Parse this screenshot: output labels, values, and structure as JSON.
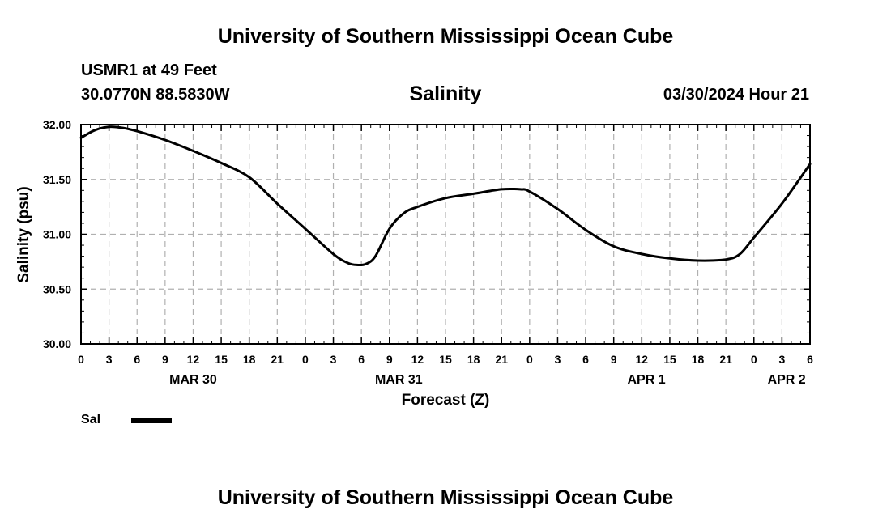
{
  "page": {
    "title_top": "University of Southern Mississippi Ocean Cube",
    "title_bottom": "University of Southern Mississippi Ocean Cube",
    "station": "USMR1 at 49 Feet",
    "coords": "30.0770N  88.5830W",
    "chart_title": "Salinity",
    "timestamp": "03/30/2024 Hour 21"
  },
  "legend": {
    "label": "Sal"
  },
  "colors": {
    "line": "#000000",
    "grid": "#b0b0b0",
    "background": "#ffffff"
  },
  "chart_data": {
    "type": "line",
    "title": "Salinity",
    "xlabel": "Forecast (Z)",
    "ylabel": "Salinity (psu)",
    "x_unit": "forecast hours",
    "xlim": [
      0,
      78
    ],
    "ylim": [
      30.0,
      32.0
    ],
    "yticks": [
      30.0,
      30.5,
      31.0,
      31.5,
      32.0
    ],
    "ytick_labels": [
      "30.00",
      "30.50",
      "31.00",
      "31.50",
      "32.00"
    ],
    "xtick_values": [
      0,
      3,
      6,
      9,
      12,
      15,
      18,
      21,
      24,
      27,
      30,
      33,
      36,
      39,
      42,
      45,
      48,
      51,
      54,
      57,
      60,
      63,
      66,
      69,
      72,
      75,
      78
    ],
    "xtick_labels": [
      "0",
      "3",
      "6",
      "9",
      "12",
      "15",
      "18",
      "21",
      "0",
      "3",
      "6",
      "9",
      "12",
      "15",
      "18",
      "21",
      "0",
      "3",
      "6",
      "9",
      "12",
      "15",
      "18",
      "21",
      "0",
      "3",
      "6"
    ],
    "day_labels": [
      {
        "label": "MAR 30",
        "x": 12
      },
      {
        "label": "MAR 31",
        "x": 34
      },
      {
        "label": "APR 1",
        "x": 60.5
      },
      {
        "label": "APR 2",
        "x": 75.5
      }
    ],
    "grid": true,
    "legend_position": "bottom-left",
    "series": [
      {
        "name": "Sal",
        "x": [
          0,
          1.5,
          3,
          4.5,
          6,
          9,
          12,
          15,
          18,
          21,
          24,
          27,
          28.5,
          29.5,
          30.5,
          31.5,
          33,
          34.5,
          36,
          39,
          42,
          45,
          47,
          48,
          51,
          54,
          57,
          60,
          63,
          66,
          69,
          70.5,
          72,
          75,
          78
        ],
        "y": [
          31.88,
          31.95,
          31.98,
          31.97,
          31.94,
          31.86,
          31.76,
          31.65,
          31.52,
          31.28,
          31.05,
          30.82,
          30.74,
          30.72,
          30.73,
          30.8,
          31.05,
          31.19,
          31.25,
          31.33,
          31.37,
          31.41,
          31.41,
          31.39,
          31.23,
          31.04,
          30.89,
          30.82,
          30.78,
          30.76,
          30.77,
          30.82,
          30.97,
          31.28,
          31.64
        ]
      }
    ]
  }
}
